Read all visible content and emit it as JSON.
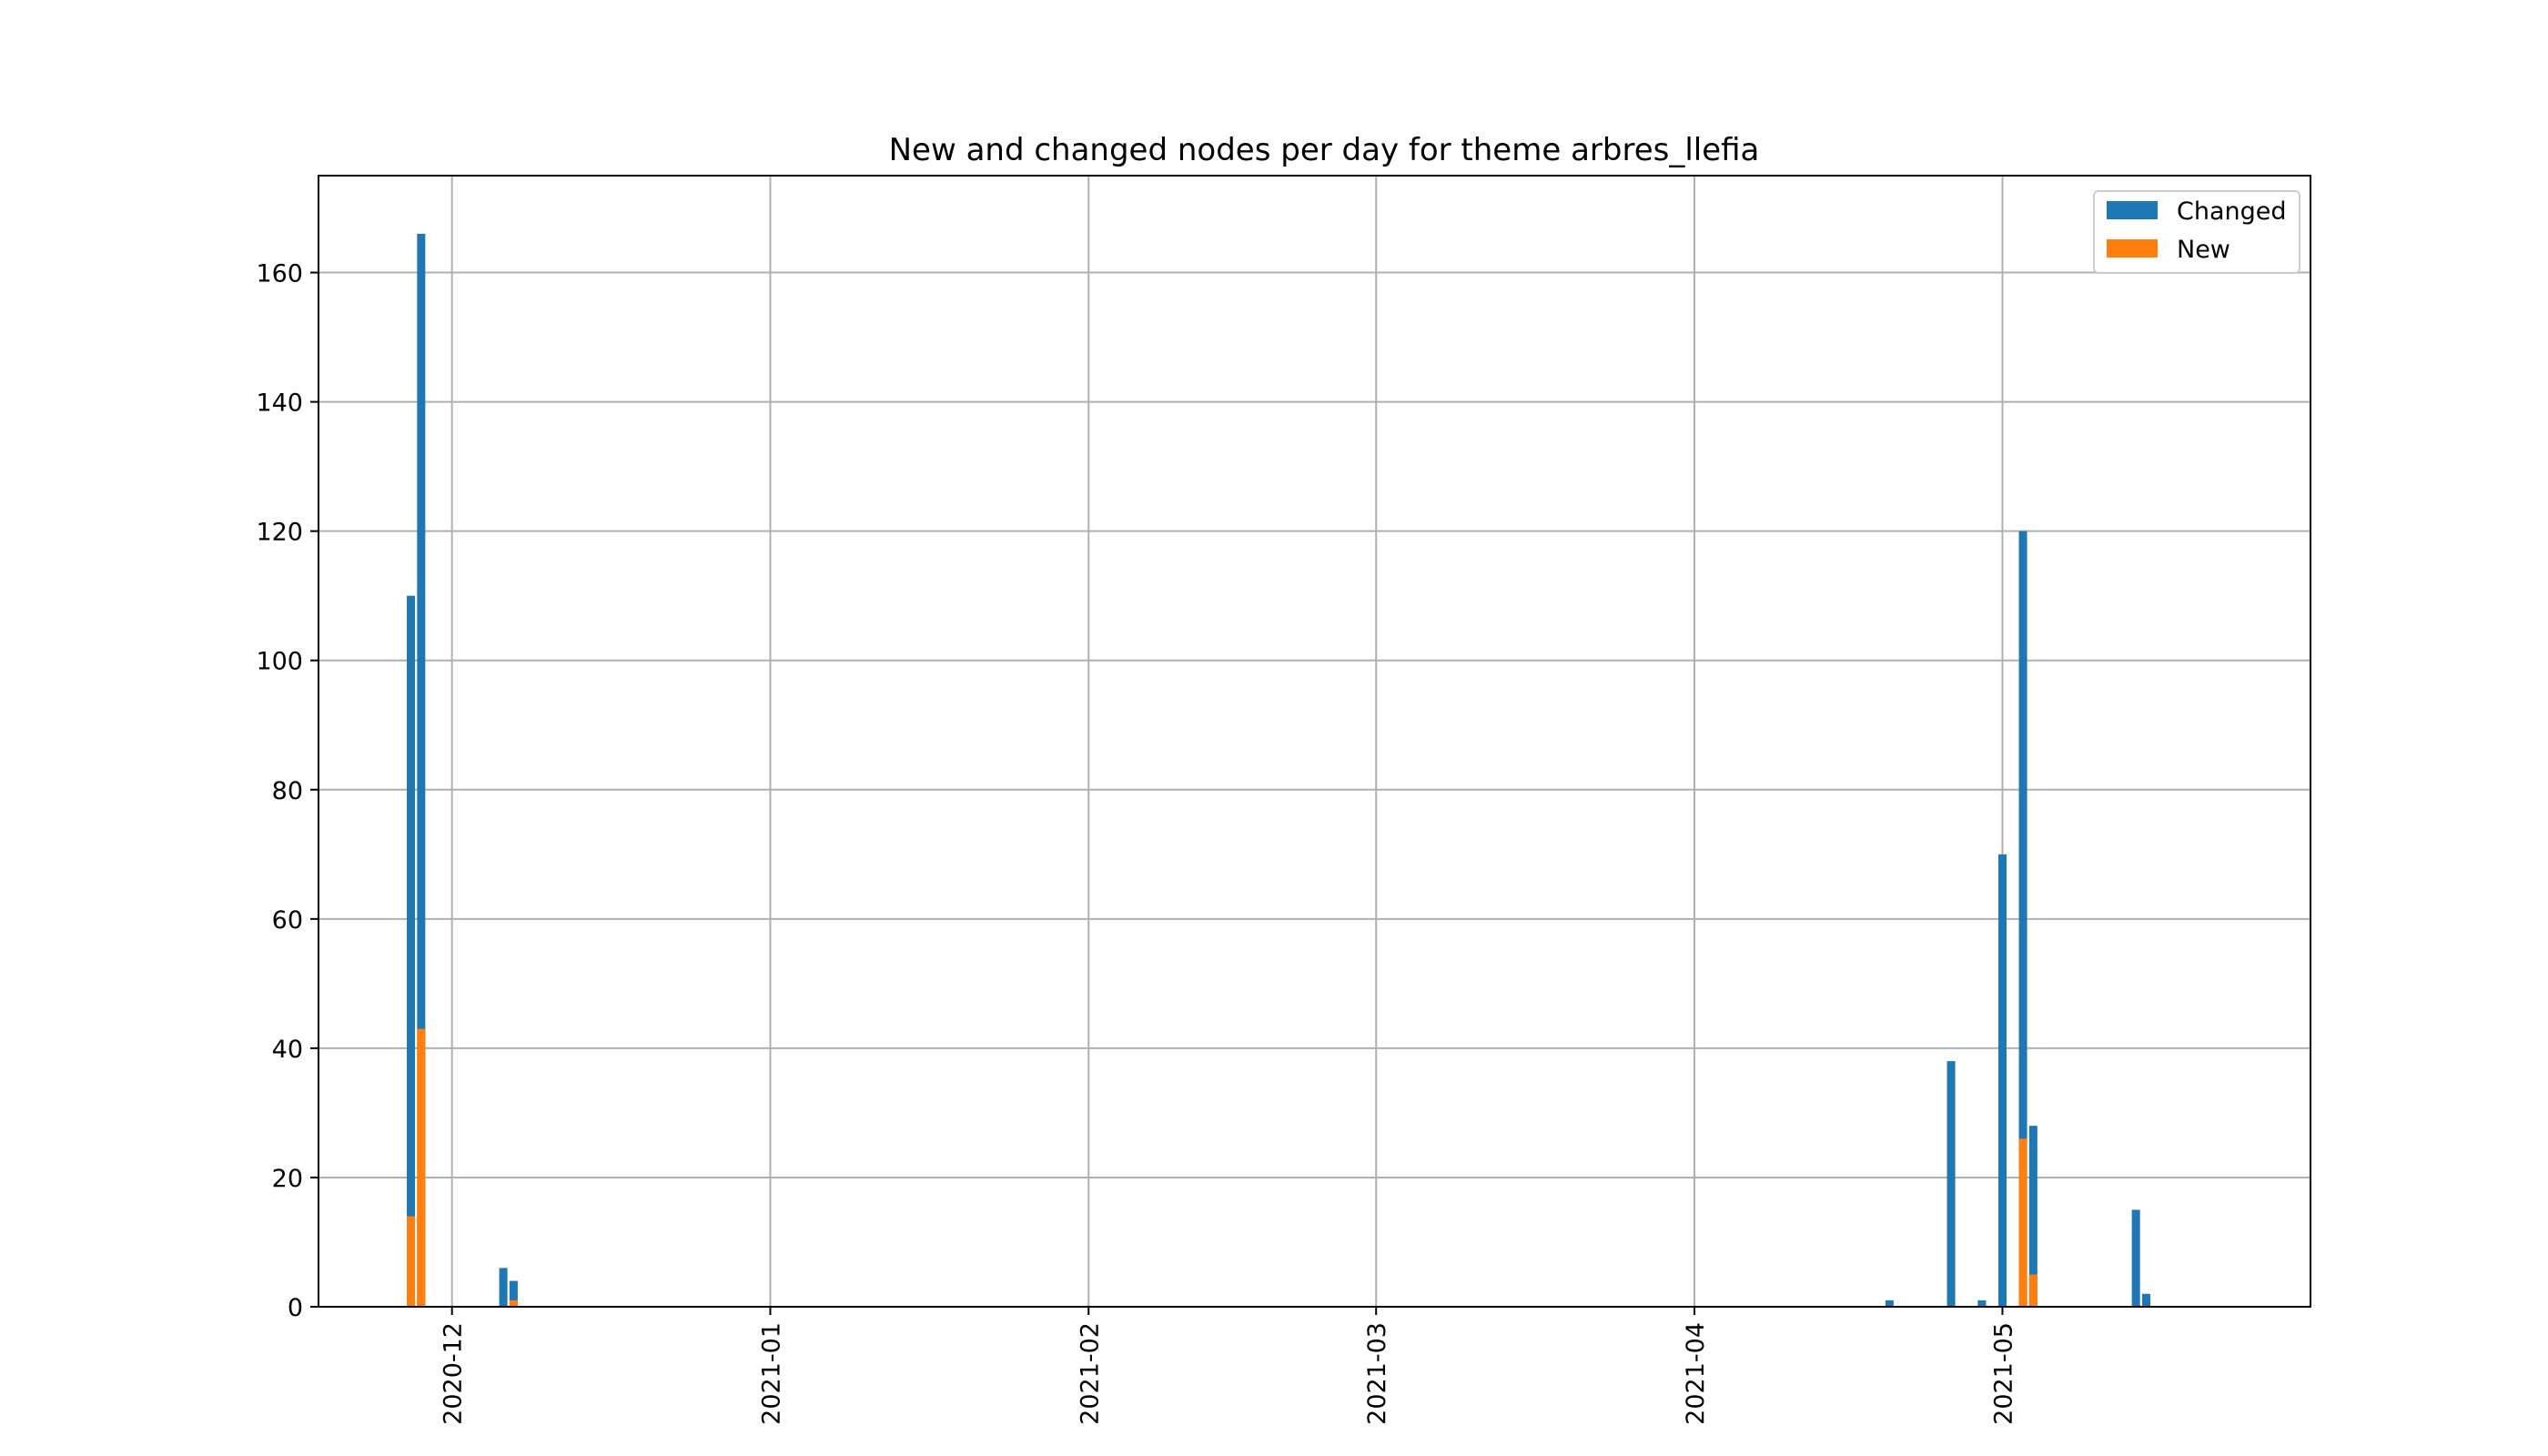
{
  "chart_data": {
    "type": "bar",
    "stacking": "overlaid",
    "title": "New and changed nodes per day for theme arbres_llefia",
    "xlabel": "",
    "ylabel": "",
    "x_type": "date",
    "xlim": [
      "2020-11-18",
      "2021-05-31"
    ],
    "ylim": [
      0,
      175
    ],
    "grid": true,
    "legend_position": "upper right",
    "x_ticks": [
      "2020-12",
      "2021-01",
      "2021-02",
      "2021-03",
      "2021-04",
      "2021-05"
    ],
    "y_ticks": [
      0,
      20,
      40,
      60,
      80,
      100,
      120,
      140,
      160
    ],
    "series": [
      {
        "name": "Changed",
        "color": "#1f77b4",
        "points": [
          {
            "date": "2020-11-27",
            "value": 110
          },
          {
            "date": "2020-11-28",
            "value": 166
          },
          {
            "date": "2020-12-06",
            "value": 6
          },
          {
            "date": "2020-12-07",
            "value": 4
          },
          {
            "date": "2021-04-20",
            "value": 1
          },
          {
            "date": "2021-04-26",
            "value": 38
          },
          {
            "date": "2021-04-29",
            "value": 1
          },
          {
            "date": "2021-05-01",
            "value": 70
          },
          {
            "date": "2021-05-03",
            "value": 120
          },
          {
            "date": "2021-05-04",
            "value": 28
          },
          {
            "date": "2021-05-14",
            "value": 15
          },
          {
            "date": "2021-05-15",
            "value": 2
          }
        ]
      },
      {
        "name": "New",
        "color": "#ff7f0e",
        "points": [
          {
            "date": "2020-11-27",
            "value": 14
          },
          {
            "date": "2020-11-28",
            "value": 43
          },
          {
            "date": "2020-12-07",
            "value": 1
          },
          {
            "date": "2021-05-03",
            "value": 26
          },
          {
            "date": "2021-05-04",
            "value": 5
          }
        ]
      }
    ]
  }
}
